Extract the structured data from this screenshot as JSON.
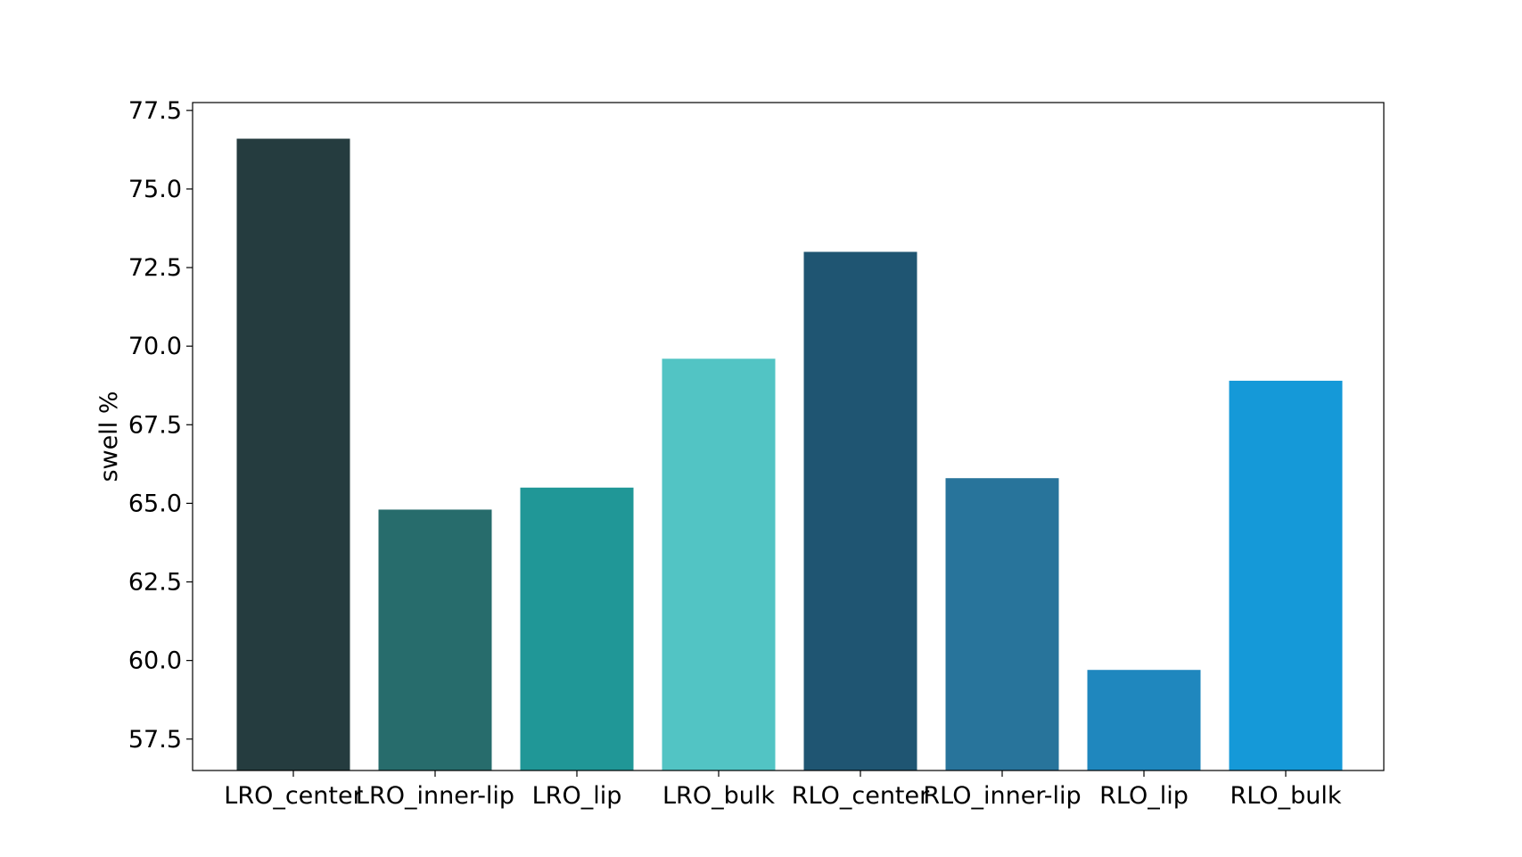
{
  "chart_data": {
    "type": "bar",
    "categories": [
      "LRO_center",
      "LRO_inner-lip",
      "LRO_lip",
      "LRO_bulk",
      "RLO_center",
      "RLO_inner-lip",
      "RLO_lip",
      "RLO_bulk"
    ],
    "values": [
      76.6,
      64.8,
      65.5,
      69.6,
      73.0,
      65.8,
      59.7,
      68.9
    ],
    "colors": [
      "#253c3f",
      "#276c6c",
      "#209797",
      "#52c4c4",
      "#1f5572",
      "#28749b",
      "#1f87be",
      "#1599d8"
    ],
    "title": "",
    "xlabel": "",
    "ylabel": "swell %",
    "ylim": [
      56.5,
      77.75
    ],
    "yticks": [
      57.5,
      60.0,
      62.5,
      65.0,
      67.5,
      70.0,
      72.5,
      75.0,
      77.5
    ],
    "ytick_labels": [
      "57.5",
      "60.0",
      "62.5",
      "65.0",
      "67.5",
      "70.0",
      "72.5",
      "75.0",
      "77.5"
    ],
    "grid": false,
    "legend": "none"
  }
}
